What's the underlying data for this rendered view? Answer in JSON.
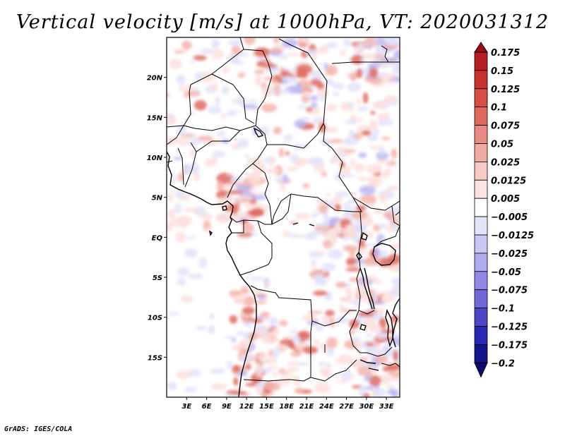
{
  "title": "Vertical velocity [m/s] at 1000hPa, VT: 2020031312",
  "footer": "GrADS: IGES/COLA",
  "map": {
    "lon_range": [
      0,
      35
    ],
    "lat_range": [
      -20,
      25
    ],
    "lon_tick_labels": [
      "3E",
      "6E",
      "9E",
      "12E",
      "15E",
      "18E",
      "21E",
      "24E",
      "27E",
      "30E",
      "33E"
    ],
    "lat_tick_labels": [
      "20N",
      "15N",
      "10N",
      "5N",
      "EQ",
      "5S",
      "10S",
      "15S"
    ]
  },
  "colorbar": {
    "labels": [
      "0.175",
      "0.15",
      "0.125",
      "0.1",
      "0.075",
      "0.05",
      "0.025",
      "0.0125",
      "0.005",
      "−0.005",
      "−0.0125",
      "−0.025",
      "−0.05",
      "−0.075",
      "−0.1",
      "−0.125",
      "−0.175",
      "−0.2"
    ],
    "colors": [
      "#9e0a14",
      "#b41e23",
      "#c8322d",
      "#d74e44",
      "#e06a60",
      "#e88b82",
      "#efaaa3",
      "#f6cac5",
      "#fbe4e1",
      "#ffffff",
      "#e4e4fb",
      "#c9c8f5",
      "#aeaaee",
      "#9088e4",
      "#6f68d8",
      "#4b46c6",
      "#2a28b0",
      "#16148a",
      "#0c0a6e"
    ]
  },
  "colors": {
    "pos_weak": "#fbe1dd",
    "pos_mid": "#f3b5ad",
    "pos_strong": "#dd6b60",
    "neg_weak": "#e3e3fa",
    "neg_mid": "#bcb8f2"
  }
}
